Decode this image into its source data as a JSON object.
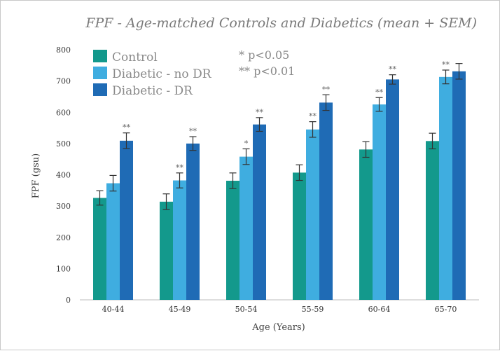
{
  "chart_data": {
    "type": "bar",
    "title": "FPF - Age-matched Controls and Diabetics (mean + SEM)",
    "xlabel": "Age (Years)",
    "ylabel": "FPF (gsu)",
    "ylim": [
      0,
      800
    ],
    "yticks": [
      "0",
      "100",
      "200",
      "300",
      "400",
      "500",
      "600",
      "700",
      "800"
    ],
    "categories": [
      "40-44",
      "45-49",
      "50-54",
      "55-59",
      "60-64",
      "65-70"
    ],
    "series": [
      {
        "name": "Control",
        "color": "#13998c",
        "values": [
          326,
          314,
          381,
          407,
          481,
          508
        ],
        "errors": [
          23,
          25,
          25,
          25,
          25,
          25
        ],
        "labels": [
          "",
          "",
          "",
          "",
          "",
          ""
        ]
      },
      {
        "name": "Diabetic - no DR",
        "color": "#3fade0",
        "values": [
          373,
          382,
          458,
          545,
          625,
          713
        ],
        "errors": [
          25,
          24,
          25,
          25,
          22,
          22
        ],
        "labels": [
          "",
          "**",
          "*",
          "**",
          "**",
          "**"
        ]
      },
      {
        "name": "Diabetic - DR",
        "color": "#1f6bb5",
        "values": [
          509,
          500,
          561,
          631,
          705,
          731
        ],
        "errors": [
          25,
          22,
          22,
          25,
          15,
          25
        ],
        "labels": [
          "**",
          "**",
          "**",
          "**",
          "**",
          ""
        ]
      }
    ],
    "notes": [
      "* p<0.05",
      "** p<0.01"
    ],
    "legend_position": "top-left",
    "grid": false
  }
}
